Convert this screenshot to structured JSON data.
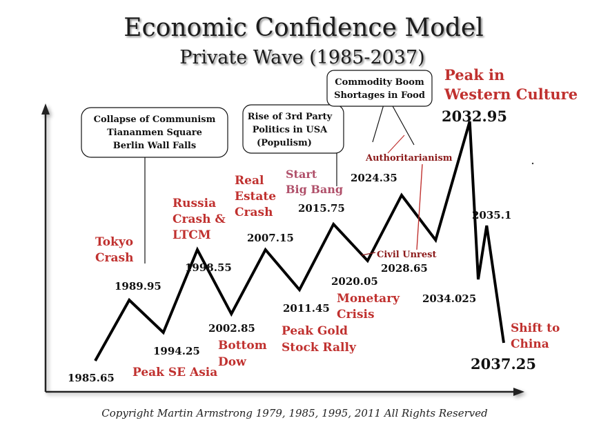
{
  "chart_data": {
    "type": "line",
    "title": "Economic Confidence Model",
    "subtitle": "Private Wave (1985-2037)",
    "points": [
      {
        "x": 1985.65,
        "label": "1985.65"
      },
      {
        "x": 1989.95,
        "label": "1989.95"
      },
      {
        "x": 1994.25,
        "label": "1994.25"
      },
      {
        "x": 1998.55,
        "label": "1998.55"
      },
      {
        "x": 2002.85,
        "label": "2002.85"
      },
      {
        "x": 2007.15,
        "label": "2007.15"
      },
      {
        "x": 2011.45,
        "label": "2011.45"
      },
      {
        "x": 2015.75,
        "label": "2015.75"
      },
      {
        "x": 2020.05,
        "label": "2020.05"
      },
      {
        "x": 2024.35,
        "label": "2024.35"
      },
      {
        "x": 2028.65,
        "label": "2028.65"
      },
      {
        "x": 2032.95,
        "label": "2032.95"
      },
      {
        "x": 2034.025,
        "label": "2034.025"
      },
      {
        "x": 2035.1,
        "label": "2035.1"
      },
      {
        "x": 2037.25,
        "label": "2037.25"
      }
    ],
    "callouts": [
      {
        "lines": [
          "Collapse of Communism",
          "Tiananmen Square",
          "Berlin Wall Falls"
        ]
      },
      {
        "lines": [
          "Rise of 3rd Party",
          "Politics in USA",
          "(Populism)"
        ]
      },
      {
        "lines": [
          "Commodity Boom",
          "Shortages in Food"
        ]
      }
    ],
    "events": {
      "tokyo": [
        "Tokyo",
        "Crash"
      ],
      "russia": [
        "Russia",
        "Crash &",
        "LTCM"
      ],
      "real_estate": [
        "Real",
        "Estate",
        "Crash"
      ],
      "big_bang": [
        "Start",
        "Big Bang"
      ],
      "peak_western": [
        "Peak in",
        "Western Culture"
      ],
      "authoritarianism": "Authoritarianism",
      "civil_unrest": "Civil Unrest",
      "monetary": [
        "Monetary",
        "Crisis"
      ],
      "peak_gold": [
        "Peak Gold",
        "Stock Rally"
      ],
      "bottom_dow": [
        "Bottom",
        "Dow"
      ],
      "peak_se_asia": "Peak SE Asia",
      "shift_china": [
        "Shift to",
        "China"
      ]
    },
    "copyright": "Copyright Martin Armstrong 1979, 1985, 1995, 2011 All Rights Reserved",
    "colors": {
      "line": "#000000",
      "event": "#c0312f",
      "event_small": "#8b1a1a",
      "event_pink": "#b0506a",
      "axis": "#222222"
    }
  }
}
